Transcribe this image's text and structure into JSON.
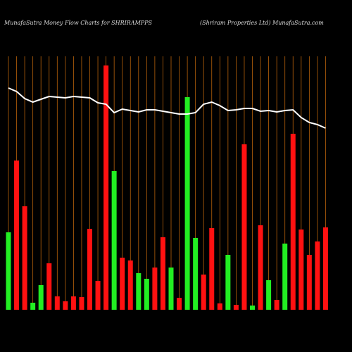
{
  "chart_data": {
    "type": "bar",
    "title": "MunafaSutra  Money Flow  Charts for SHRIRAMPPS",
    "subtitle": "(Shriram Properties Ltd) MunafaSutra.com",
    "ylim": [
      0,
      360
    ],
    "bars": {
      "values": [
        110,
        212,
        147,
        10,
        35,
        66,
        19,
        12,
        19,
        18,
        115,
        41,
        347,
        197,
        74,
        70,
        52,
        44,
        60,
        103,
        60,
        17,
        302,
        102,
        50,
        116,
        9,
        78,
        7,
        235,
        6,
        120,
        42,
        14,
        94,
        250,
        114,
        78,
        97,
        117
      ],
      "colors": [
        "#22ee22",
        "#ff1111",
        "#ff1111",
        "#22ee22",
        "#22ee22",
        "#ff1111",
        "#ff1111",
        "#ff1111",
        "#ff1111",
        "#ff1111",
        "#ff1111",
        "#ff1111",
        "#ff1111",
        "#22ee22",
        "#ff1111",
        "#ff1111",
        "#22ee22",
        "#22ee22",
        "#ff1111",
        "#ff1111",
        "#22ee22",
        "#ff1111",
        "#22ee22",
        "#22ee22",
        "#ff1111",
        "#ff1111",
        "#ff1111",
        "#22ee22",
        "#ff1111",
        "#ff1111",
        "#22ee22",
        "#ff1111",
        "#22ee22",
        "#ff1111",
        "#22ee22",
        "#ff1111",
        "#ff1111",
        "#ff1111",
        "#ff1111",
        "#ff1111"
      ]
    },
    "line": {
      "color": "#ffffff",
      "values": [
        315,
        310,
        300,
        295,
        299,
        303,
        302,
        301,
        303,
        302,
        301,
        294,
        292,
        280,
        285,
        283,
        281,
        284,
        284,
        282,
        280,
        278,
        278,
        280,
        292,
        295,
        290,
        283,
        284,
        286,
        286,
        282,
        283,
        281,
        283,
        284,
        273,
        266,
        263,
        258
      ]
    }
  }
}
